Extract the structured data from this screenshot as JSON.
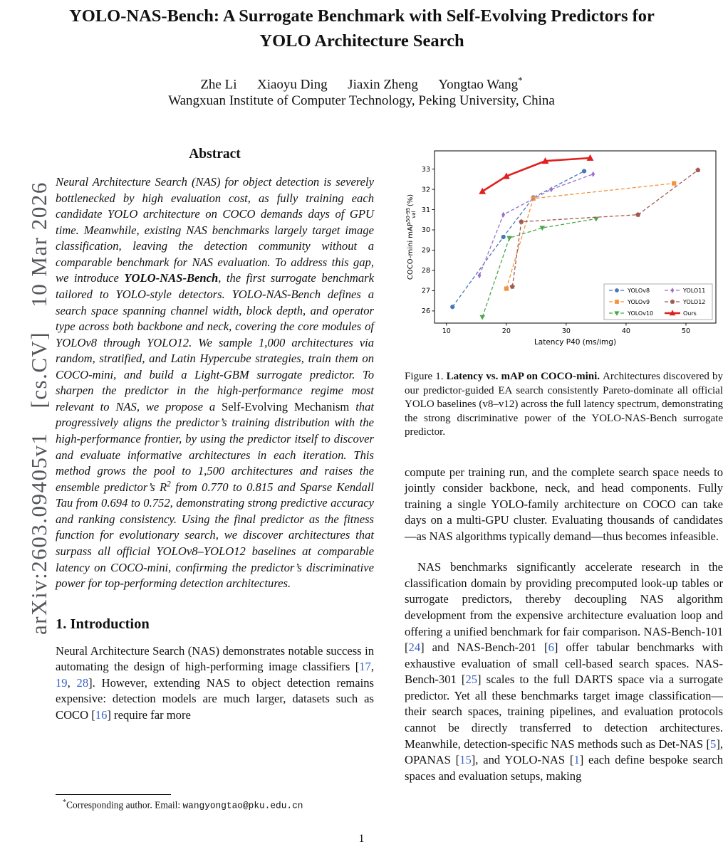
{
  "arxiv_stamp": "arXiv:2603.09405v1  [cs.CV]  10 Mar 2026",
  "title": "YOLO-NAS-Bench: A Surrogate Benchmark with Self-Evolving Predictors for YOLO Architecture Search",
  "authors": "Zhe Li  Xiaoyu Ding  Jiaxin Zheng  Yongtao Wang",
  "author_star": "*",
  "affiliation": "Wangxuan Institute of Computer Technology, Peking University, China",
  "colors": {
    "citation_link": "#3b63c3",
    "ours_red": "#e01f1f"
  },
  "abstract": {
    "heading": "Abstract",
    "segments": [
      {
        "t": "Neural Architecture Search (NAS) for object detection is severely bottlenecked by high evaluation cost, as fully training each candidate YOLO architecture on COCO demands days of GPU time. Meanwhile, existing NAS benchmarks largely target image classification, leaving the detection community without a comparable benchmark for NAS evaluation. To address this gap, we introduce "
      },
      {
        "t": "YOLO-NAS-Bench",
        "c": "bi"
      },
      {
        "t": ", the first surrogate benchmark tailored to YOLO-style detectors. YOLO-NAS-Bench defines a search space spanning channel width, block depth, and operator type across both backbone and neck, covering the core modules of YOLOv8 through YOLO12. We sample 1,000 architectures via random, stratified, and Latin Hypercube strategies, train them on COCO-mini, and build a Light-GBM surrogate predictor. To sharpen the predictor in the high-performance regime most relevant to NAS, we propose a "
      },
      {
        "t": "Self-Evolving Mechanism",
        "c": "rm"
      },
      {
        "t": " that progressively aligns the predictor’s training distribution with the high-performance frontier, by using the predictor itself to discover and evaluate informative architectures in each iteration. This method grows the pool to 1,500 architectures and raises the ensemble predictor’s R"
      },
      {
        "t": "2",
        "c": "sup"
      },
      {
        "t": " from 0.770 to 0.815 and Sparse Kendall Tau from 0.694 to 0.752, demonstrating strong predictive accuracy and ranking consistency. Using the final predictor as the fitness function for evolutionary search, we discover architectures that surpass all official YOLOv8–YOLO12 baselines at comparable latency on COCO-mini, confirming the predictor’s discriminative power for top-performing detection architectures."
      }
    ]
  },
  "intro": {
    "heading": "1. Introduction",
    "segments": [
      {
        "t": "Neural Architecture Search (NAS) demonstrates notable success in automating the design of high-performing image classifiers ["
      },
      {
        "t": "17",
        "c": "cite",
        "n": "citation-17",
        "i": true
      },
      {
        "t": ", "
      },
      {
        "t": "19",
        "c": "cite",
        "n": "citation-19",
        "i": true
      },
      {
        "t": ", "
      },
      {
        "t": "28",
        "c": "cite",
        "n": "citation-28",
        "i": true
      },
      {
        "t": "]. However, extending NAS to object detection remains expensive: detection models are much larger, datasets such as COCO ["
      },
      {
        "t": "16",
        "c": "cite",
        "n": "citation-16",
        "i": true
      },
      {
        "t": "] require far more"
      }
    ]
  },
  "figure": {
    "label": "Figure 1. ",
    "caption_bold": "Latency vs. mAP on COCO-mini. ",
    "caption_rest": "Architectures discovered by our predictor-guided EA search consistently Pareto-dominate all official YOLO baselines (v8–v12) across the full latency spectrum, demonstrating the strong discriminative power of the YOLO-NAS-Bench surrogate predictor."
  },
  "right_column": {
    "para1": "compute per training run, and the complete search space needs to jointly consider backbone, neck, and head components. Fully training a single YOLO-family architecture on COCO can take days on a multi-GPU cluster. Evaluating thousands of candidates—as NAS algorithms typically demand—thus becomes infeasible.",
    "para2_segments": [
      {
        "t": "NAS benchmarks significantly accelerate research in the classification domain by providing precomputed look-up tables or surrogate predictors, thereby decoupling NAS algorithm development from the expensive architecture evaluation loop and offering a unified benchmark for fair comparison. NAS-Bench-101 ["
      },
      {
        "t": "24",
        "c": "cite",
        "n": "citation-24",
        "i": true
      },
      {
        "t": "] and NAS-Bench-201 ["
      },
      {
        "t": "6",
        "c": "cite",
        "n": "citation-6",
        "i": true
      },
      {
        "t": "] offer tabular benchmarks with exhaustive evaluation of small cell-based search spaces. NAS-Bench-301 ["
      },
      {
        "t": "25",
        "c": "cite",
        "n": "citation-25",
        "i": true
      },
      {
        "t": "] scales to the full DARTS space via a surrogate predictor. Yet all these benchmarks target image classification—their search spaces, training pipelines, and evaluation protocols cannot be directly transferred to detection architectures. Meanwhile, detection-specific NAS methods such as Det-NAS ["
      },
      {
        "t": "5",
        "c": "cite",
        "n": "citation-5",
        "i": true
      },
      {
        "t": "], OPANAS ["
      },
      {
        "t": "15",
        "c": "cite",
        "n": "citation-15",
        "i": true
      },
      {
        "t": "], and YOLO-NAS ["
      },
      {
        "t": "1",
        "c": "cite",
        "n": "citation-1",
        "i": true
      },
      {
        "t": "] each define bespoke search spaces and evaluation setups, making"
      }
    ]
  },
  "footnote": {
    "marker": "*",
    "text": "Corresponding author. Email: ",
    "email": "wangyongtao@pku.edu.cn"
  },
  "page_number": "1",
  "chart_data": {
    "type": "line",
    "title": "",
    "xlabel": "Latency P40 (ms/img)",
    "ylabel": "COCO-mini mAP50-95val (%)",
    "ylabel_parts": {
      "prefix": "COCO-mini mAP",
      "sup": "50-95",
      "sub": "val",
      "suffix": " (%)"
    },
    "xlim": [
      8,
      55
    ],
    "ylim": [
      25.4,
      33.9
    ],
    "xticks": [
      10,
      20,
      30,
      40,
      50
    ],
    "yticks": [
      26,
      27,
      28,
      29,
      30,
      31,
      32,
      33
    ],
    "grid": false,
    "legend_position": "lower-right",
    "series": [
      {
        "name": "YOLOv8",
        "color": "#4878b4",
        "dash": "5 3",
        "marker": "circle",
        "line_width": 1.3,
        "points": [
          [
            11,
            26.2
          ],
          [
            19.5,
            29.65
          ],
          [
            24.5,
            31.6
          ],
          [
            33,
            32.9
          ]
        ]
      },
      {
        "name": "YOLOv9",
        "color": "#f5923c",
        "dash": "5 3",
        "marker": "square",
        "line_width": 1.3,
        "points": [
          [
            20,
            27.1
          ],
          [
            24.5,
            31.55
          ],
          [
            48,
            32.3
          ]
        ]
      },
      {
        "name": "YOLOv10",
        "color": "#4ca64c",
        "dash": "5 3",
        "marker": "triangle-down",
        "line_width": 1.3,
        "points": [
          [
            16,
            25.7
          ],
          [
            20.5,
            29.6
          ],
          [
            26,
            30.1
          ],
          [
            35,
            30.55
          ]
        ]
      },
      {
        "name": "YOLO11",
        "color": "#9a6fce",
        "dash": "5 3",
        "marker": "diamond",
        "line_width": 1.3,
        "points": [
          [
            15.5,
            27.75
          ],
          [
            19.5,
            30.75
          ],
          [
            27.5,
            32.0
          ],
          [
            34.5,
            32.75
          ]
        ]
      },
      {
        "name": "YOLO12",
        "color": "#a05a52",
        "dash": "5 3",
        "marker": "pentagon",
        "line_width": 1.3,
        "points": [
          [
            21,
            27.2
          ],
          [
            22.5,
            30.4
          ],
          [
            42,
            30.75
          ],
          [
            52,
            32.95
          ]
        ]
      },
      {
        "name": "Ours",
        "color": "#e01f1f",
        "dash": null,
        "marker": "triangle-up",
        "line_width": 2.6,
        "points": [
          [
            16,
            31.9
          ],
          [
            20,
            32.65
          ],
          [
            26.5,
            33.4
          ],
          [
            34,
            33.55
          ]
        ]
      }
    ]
  }
}
